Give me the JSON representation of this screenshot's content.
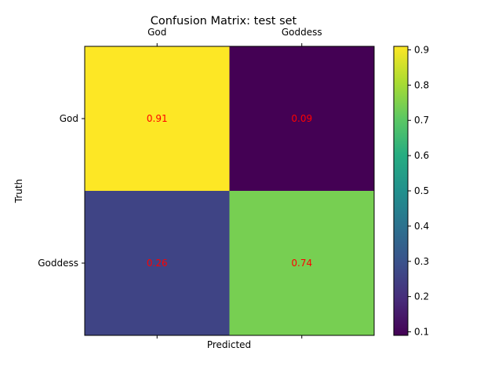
{
  "chart_data": {
    "type": "heatmap",
    "title": "Confusion Matrix: test set",
    "xlabel": "Predicted",
    "ylabel": "Truth",
    "x_categories": [
      "God",
      "Goddess"
    ],
    "y_categories": [
      "God",
      "Goddess"
    ],
    "values": [
      [
        0.91,
        0.09
      ],
      [
        0.26,
        0.74
      ]
    ],
    "value_labels": [
      [
        "0.91",
        "0.09"
      ],
      [
        "0.26",
        "0.74"
      ]
    ],
    "annotation_color": "#ff0000",
    "colormap": "viridis",
    "colorbar": {
      "range": [
        0.09,
        0.91
      ],
      "ticks": [
        "0.1",
        "0.2",
        "0.3",
        "0.4",
        "0.5",
        "0.6",
        "0.7",
        "0.8",
        "0.9"
      ],
      "tick_values": [
        0.1,
        0.2,
        0.3,
        0.4,
        0.5,
        0.6,
        0.7,
        0.8,
        0.9
      ]
    },
    "x_tick_position": "top",
    "grid": false
  }
}
